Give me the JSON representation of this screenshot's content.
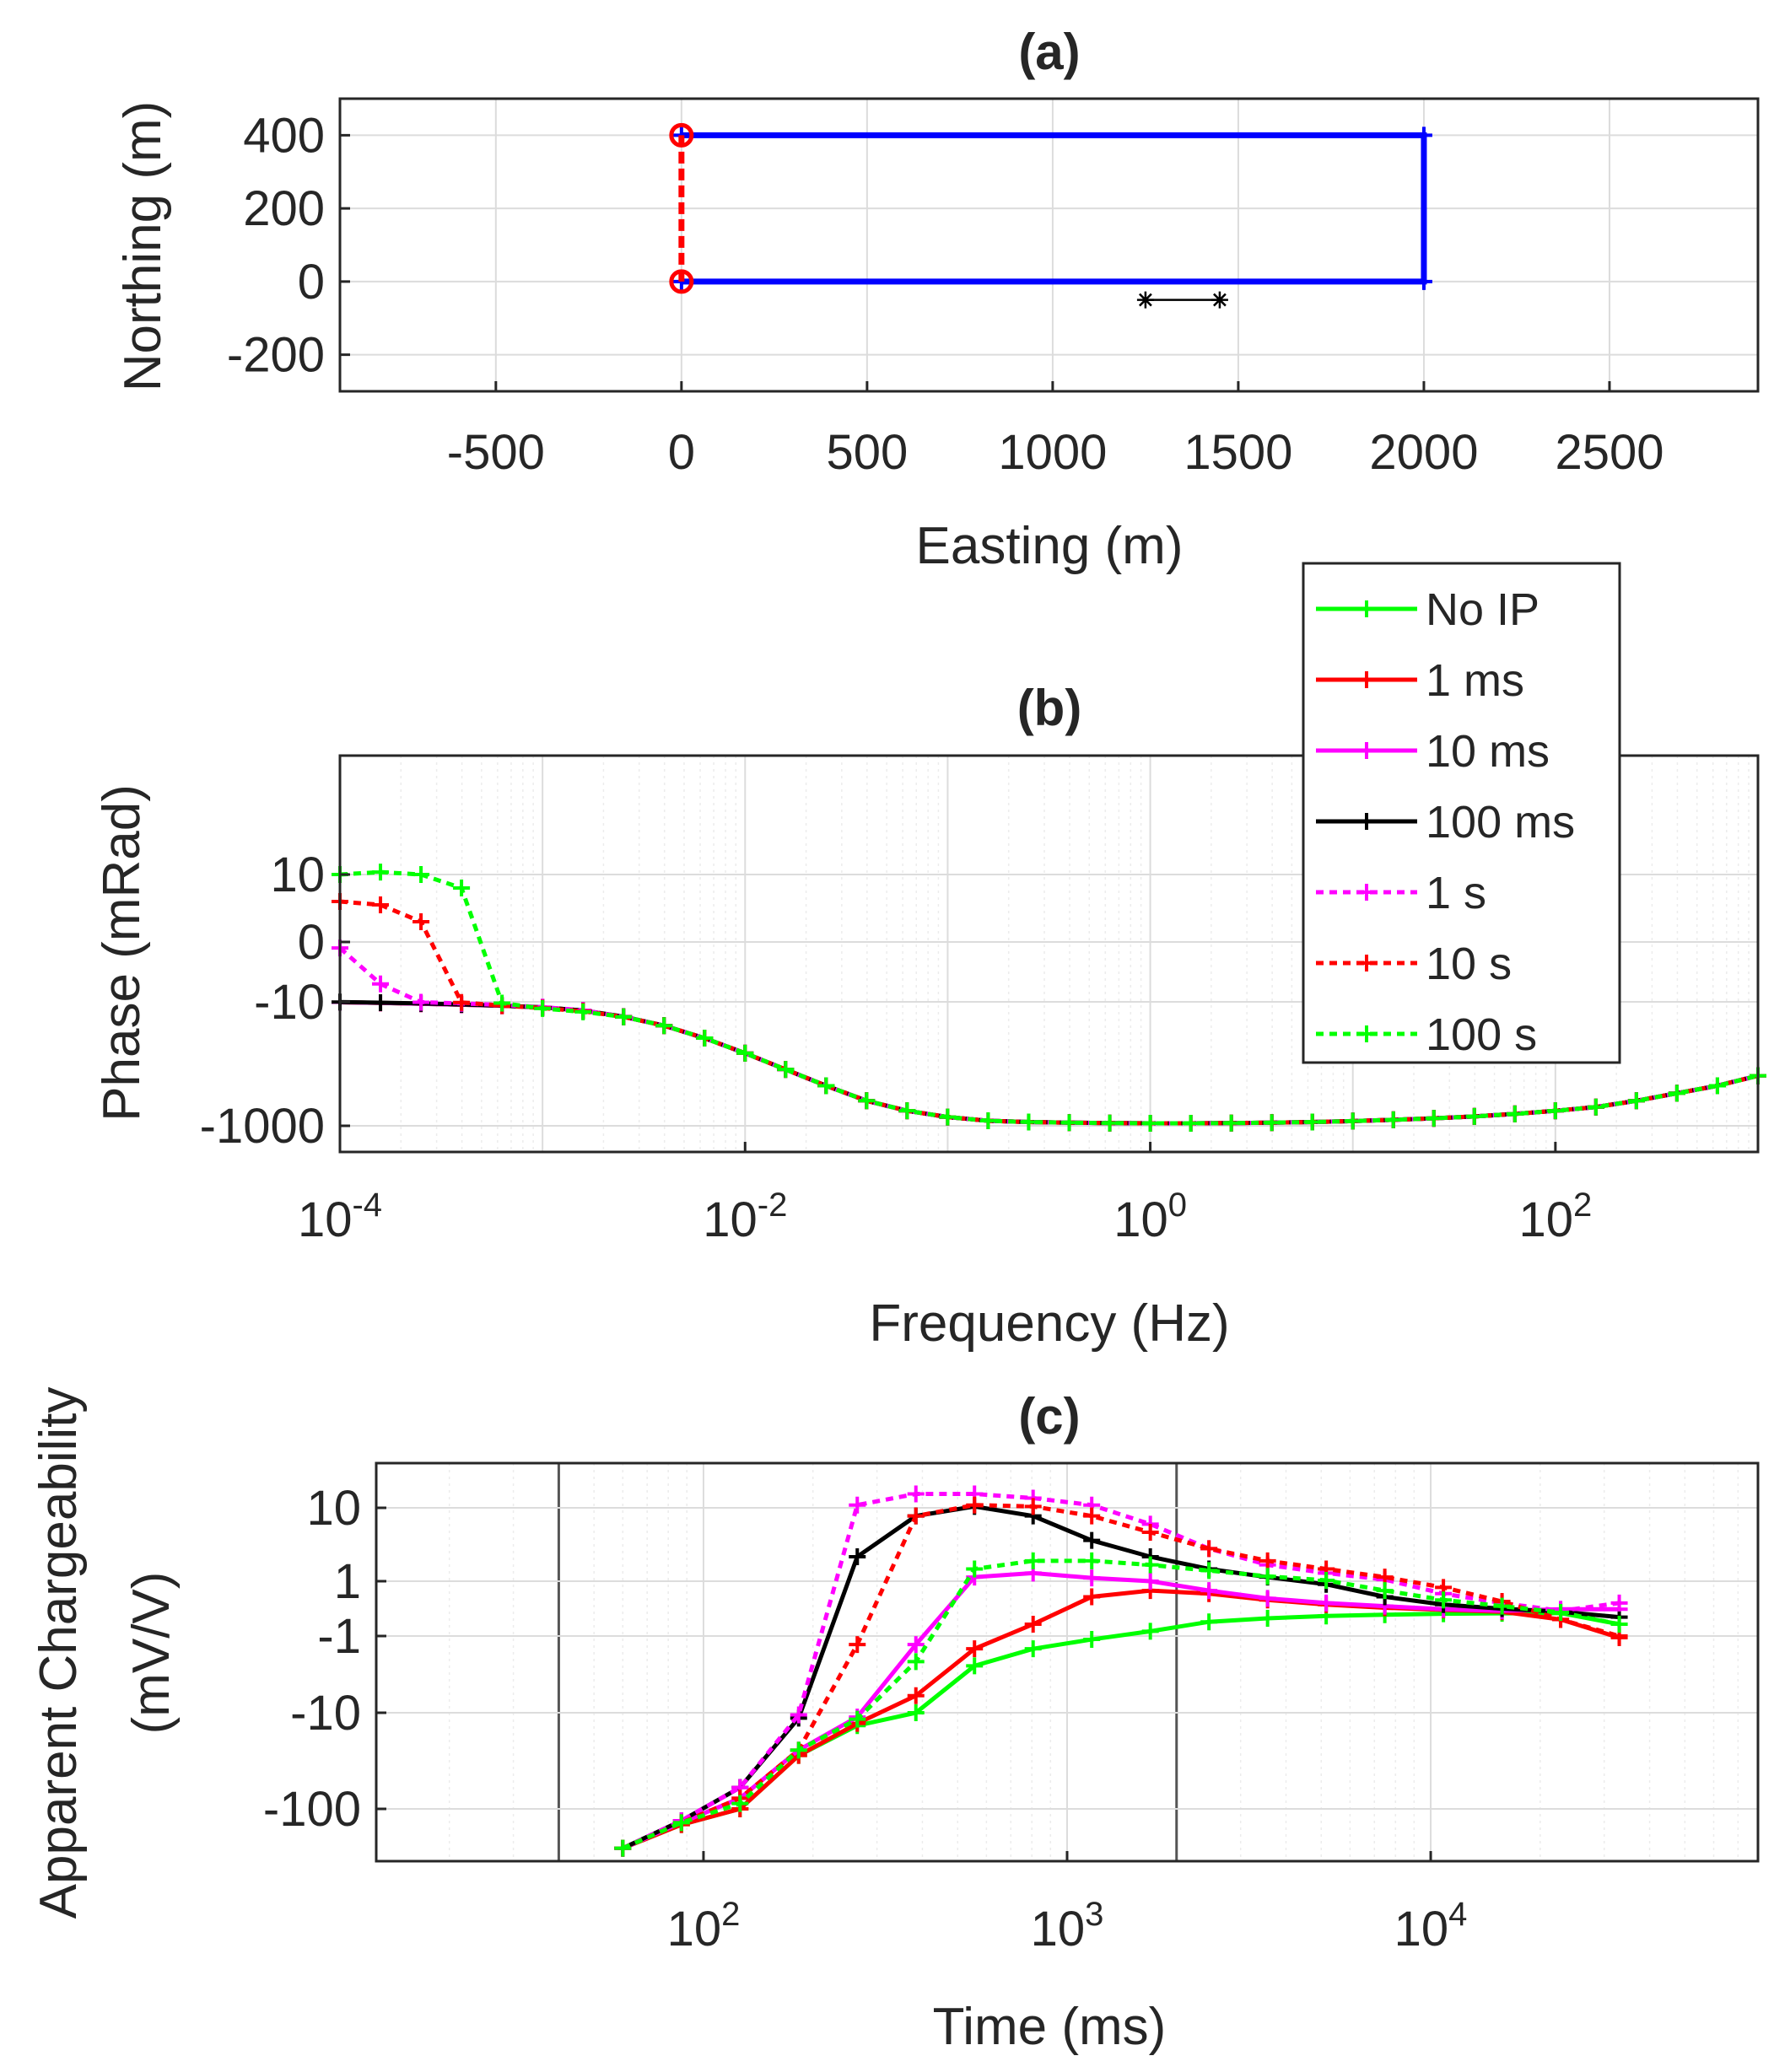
{
  "chart_data": [
    {
      "type": "line",
      "title": "(a)",
      "xlabel": "Easting (m)",
      "ylabel": "Northing (m)",
      "xlim": [
        -920,
        2900
      ],
      "ylim": [
        -300,
        500
      ],
      "xticks": [
        -500,
        0,
        500,
        1000,
        1500,
        2000,
        2500
      ],
      "xtick_labels": [
        "-500",
        "0",
        "500",
        "1000",
        "1500",
        "2000",
        "2500"
      ],
      "yticks": [
        -200,
        0,
        200,
        400
      ],
      "ytick_labels": [
        "-200",
        "0",
        "200",
        "400"
      ],
      "grid": true,
      "series": [
        {
          "name": "transmitter loop",
          "color": "#0000ff",
          "x": [
            0,
            2000,
            2000,
            0
          ],
          "y": [
            400,
            400,
            0,
            0
          ]
        },
        {
          "name": "grounded wire",
          "color": "#ff0000",
          "x": [
            0,
            0
          ],
          "y": [
            0,
            400
          ]
        },
        {
          "name": "receiver dipole",
          "color": "#000000",
          "x": [
            1250,
            1450
          ],
          "y": [
            -50,
            -50
          ]
        }
      ]
    },
    {
      "type": "line",
      "title": "(b)",
      "xlabel": "Frequency (Hz)",
      "ylabel": "Phase (mRad)",
      "xscale": "log",
      "xlim_log10": [
        -4,
        3
      ],
      "xtick_labels": [
        "10-4",
        "10-2",
        "100",
        "102"
      ],
      "ytick_labels": [
        "10",
        "0",
        "-10",
        "-1000"
      ],
      "grid": true,
      "legend_location": "top-right",
      "series": [
        {
          "name": "No IP",
          "color": "#00ff00",
          "style": "solid",
          "values": [
            -13,
            -18,
            -25,
            -33,
            -41,
            -55,
            -80,
            -130,
            -200,
            -300,
            -420,
            -550,
            -680,
            -800,
            -880,
            -930,
            -960,
            -970,
            -975,
            -978,
            -980,
            -980,
            -978,
            -975,
            -970,
            -962,
            -952,
            -940,
            -925,
            -905,
            -880,
            -850,
            -800,
            -740,
            -680,
            -600
          ]
        },
        {
          "name": "1 ms",
          "color": "#ff0000",
          "style": "solid",
          "values": [
            -13,
            -18,
            -25,
            -33,
            -41,
            -55,
            -80,
            -130,
            -200,
            -300,
            -420,
            -550,
            -680,
            -800,
            -880,
            -930,
            -960,
            -970,
            -975,
            -978,
            -980,
            -980,
            -978,
            -975,
            -970,
            -962,
            -952,
            -940,
            -925,
            -905,
            -880,
            -850,
            -800,
            -740,
            -680,
            -600
          ]
        },
        {
          "name": "10 ms",
          "color": "#ff00ff",
          "style": "solid",
          "values": [
            -13,
            -18,
            -25,
            -33,
            -41,
            -55,
            -80,
            -130,
            -200,
            -300,
            -420,
            -550,
            -680,
            -800,
            -880,
            -930,
            -960,
            -970,
            -975,
            -978,
            -980,
            -980,
            -978,
            -975,
            -970,
            -962,
            -952,
            -940,
            -925,
            -905,
            -880,
            -850,
            -800,
            -740,
            -680,
            -600
          ]
        },
        {
          "name": "100 ms",
          "color": "#000000",
          "style": "solid",
          "values": [
            -12,
            -17,
            -23,
            -31,
            -40,
            -54,
            -79,
            -128,
            -200,
            -300,
            -420,
            -550,
            -680,
            -800,
            -880,
            -930,
            -960,
            -970,
            -975,
            -978,
            -980,
            -980,
            -978,
            -975,
            -970,
            -962,
            -952,
            -940,
            -925,
            -905,
            -880,
            -850,
            -800,
            -740,
            -680,
            -600
          ]
        },
        {
          "name": "1 s",
          "color": "#ff00ff",
          "style": "dotted",
          "values": [
            -1,
            -7,
            -13,
            -22,
            -35,
            -52,
            -78,
            -130,
            -200,
            -300,
            -420,
            -550,
            -680,
            -800,
            -880,
            -930,
            -960,
            -970,
            -975,
            -978,
            -980,
            -980,
            -978,
            -975,
            -970,
            -962,
            -952,
            -940,
            -925,
            -905,
            -880,
            -850,
            -800,
            -740,
            -680,
            -600
          ]
        },
        {
          "name": "10 s",
          "color": "#ff0000",
          "style": "dotted",
          "values": [
            6,
            5.5,
            3,
            -15,
            -40,
            -60,
            -85,
            -130,
            -200,
            -300,
            -420,
            -550,
            -680,
            -800,
            -880,
            -930,
            -960,
            -970,
            -975,
            -978,
            -980,
            -980,
            -978,
            -975,
            -970,
            -962,
            -952,
            -940,
            -925,
            -905,
            -880,
            -850,
            -800,
            -740,
            -680,
            -600
          ]
        },
        {
          "name": "100 s",
          "color": "#00ff00",
          "style": "dotted",
          "values": [
            10,
            10.5,
            10,
            8,
            -20,
            -63,
            -90,
            -130,
            -200,
            -300,
            -420,
            -550,
            -680,
            -800,
            -880,
            -930,
            -960,
            -970,
            -975,
            -978,
            -980,
            -980,
            -978,
            -975,
            -970,
            -962,
            -952,
            -940,
            -925,
            -905,
            -880,
            -850,
            -800,
            -740,
            -680,
            -600
          ]
        }
      ]
    },
    {
      "type": "line",
      "title": "(c)",
      "xlabel": "Time (ms)",
      "ylabel_lines": [
        "Apparent Chargeability",
        "(mV/V)"
      ],
      "xscale": "log",
      "xlim_log10": [
        1.1,
        4.9
      ],
      "xtick_labels": [
        "102",
        "103",
        "104"
      ],
      "ytick_labels": [
        "10",
        "1",
        "-1",
        "-10",
        "-100"
      ],
      "grid": true,
      "series": [
        {
          "name": "No IP",
          "color": "#00ff00",
          "style": "solid",
          "values": [
            -300,
            -180,
            -100,
            -50,
            -22,
            -10,
            -4.5,
            -2.5,
            -1.4,
            -0.8,
            -0.4,
            -0.25,
            -0.15,
            -0.1,
            -0.06,
            -0.04,
            -0.03,
            -0.5
          ]
        },
        {
          "name": "1 ms",
          "color": "#ff0000",
          "style": "solid",
          "values": [
            -300,
            -180,
            -100,
            -50,
            -20,
            -8,
            -2.5,
            -0.5,
            0.5,
            0.7,
            0.6,
            0.4,
            0.25,
            0.15,
            0.08,
            0.02,
            -0.3,
            -1.2
          ]
        },
        {
          "name": "10 ms",
          "color": "#ff00ff",
          "style": "solid",
          "values": [
            -300,
            -170,
            -90,
            -45,
            -14,
            -2,
            1.5,
            2,
            1.4,
            1.0,
            0.7,
            0.45,
            0.3,
            0.2,
            0.1,
            0.05,
            0.1,
            0.1
          ]
        },
        {
          "name": "100 ms",
          "color": "#000000",
          "style": "solid",
          "values": [
            -300,
            -160,
            -80,
            -15,
            4,
            9,
            11,
            9,
            6,
            4,
            2.5,
            1.5,
            0.9,
            0.5,
            0.25,
            0.12,
            0.02,
            -0.2
          ]
        },
        {
          "name": "1 s",
          "color": "#ff00ff",
          "style": "dotted",
          "values": [
            -300,
            -160,
            -80,
            -12,
            12,
            20,
            20,
            17,
            12,
            8,
            5,
            3,
            2,
            1.2,
            0.6,
            0.3,
            0.05,
            0.3
          ]
        },
        {
          "name": "10 s",
          "color": "#ff0000",
          "style": "dotted",
          "values": [
            -300,
            -170,
            -90,
            -45,
            -2,
            9,
            12,
            11,
            9,
            7,
            5,
            3.5,
            2.5,
            1.5,
            0.8,
            0.35,
            -0.3,
            -1.0
          ]
        },
        {
          "name": "100 s",
          "color": "#00ff00",
          "style": "dotted",
          "values": [
            -300,
            -170,
            -95,
            -45,
            -16,
            -4,
            2.5,
            3.5,
            3.5,
            3,
            2.3,
            1.6,
            1.1,
            0.7,
            0.4,
            0.2,
            0,
            -0.5
          ]
        }
      ]
    }
  ]
}
